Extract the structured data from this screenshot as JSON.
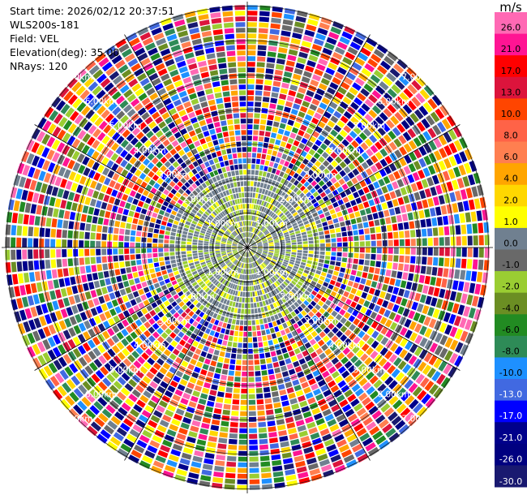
{
  "info": {
    "start_time": "Start time: 2026/02/12 20:37:51",
    "instrument": "WLS200s-181",
    "field": "Field: VEL",
    "elevation": "Elevation(deg): 35.00",
    "nrays": "NRays: 120"
  },
  "chart_data": {
    "type": "heatmap",
    "projection": "polar-ppi",
    "title": "",
    "field": "VEL",
    "elevation_deg": 35.0,
    "n_rays": 120,
    "range_ring_labels": [
      "1.00km",
      "2.00km",
      "3.00km",
      "4.00km",
      "5.00km",
      "6.00km",
      "7.00km"
    ],
    "colorbar": {
      "unit": "m/s",
      "ticks": [
        "26.0",
        "21.0",
        "17.0",
        "13.0",
        "10.0",
        "8.0",
        "6.0",
        "4.0",
        "2.0",
        "1.0",
        "0.0",
        "-1.0",
        "-2.0",
        "-4.0",
        "-6.0",
        "-8.0",
        "-10.0",
        "-13.0",
        "-17.0",
        "-21.0",
        "-26.0",
        "-30.0"
      ],
      "colors": [
        "#ff69b4",
        "#ff1493",
        "#ff0000",
        "#dc143c",
        "#ff4500",
        "#ff6347",
        "#ff7f50",
        "#ffa500",
        "#ffd700",
        "#ffff00",
        "#708090",
        "#696969",
        "#9acd32",
        "#6b8e23",
        "#228b22",
        "#2e8b57",
        "#1e90ff",
        "#4169e1",
        "#0000ff",
        "#00008b",
        "#000080",
        "#191970"
      ]
    },
    "grid": true
  }
}
